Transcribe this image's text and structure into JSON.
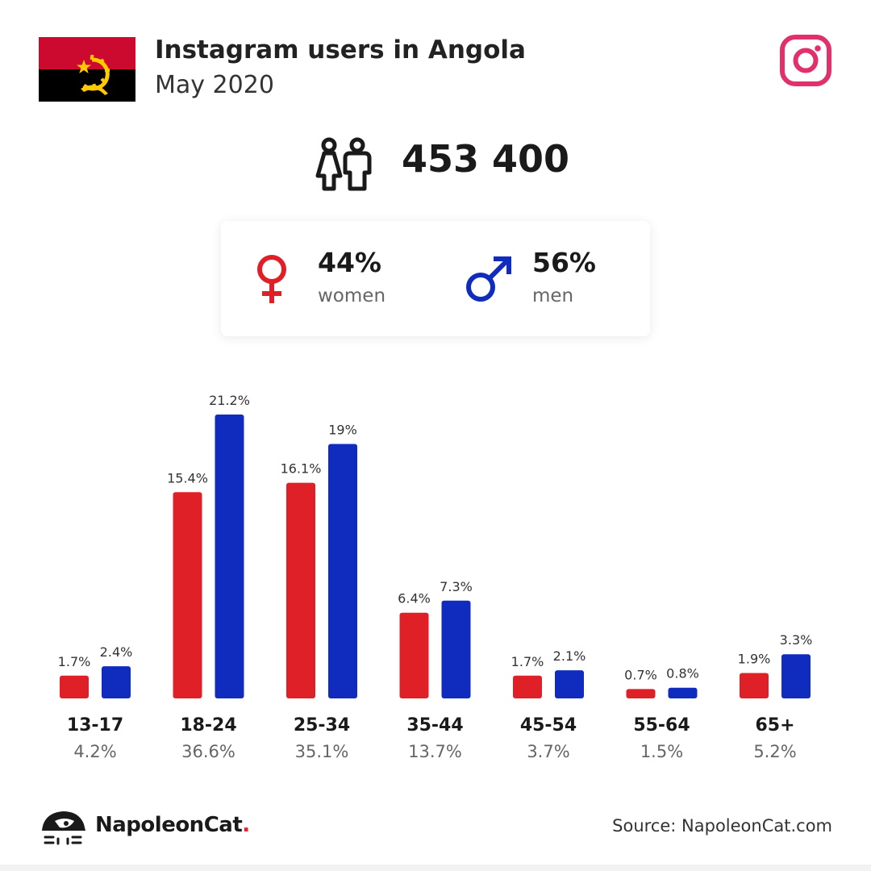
{
  "header": {
    "title": "Instagram users in Angola",
    "subtitle": "May 2020"
  },
  "summary": {
    "total_users": "453 400"
  },
  "gender": {
    "women_pct": "44%",
    "women_label": "women",
    "men_pct": "56%",
    "men_label": "men"
  },
  "colors": {
    "women": "#e02027",
    "men": "#0f2cbf",
    "instagram": "#e1306c"
  },
  "icons": {
    "flag": "angola-flag-icon",
    "platform": "instagram-icon",
    "users": "people-icon",
    "women": "female-symbol-icon",
    "men": "male-symbol-icon",
    "brand": "napoleoncat-logo-icon"
  },
  "chart_data": {
    "type": "bar",
    "categories": [
      "13-17",
      "18-24",
      "25-34",
      "35-44",
      "45-54",
      "55-64",
      "65+"
    ],
    "category_totals": [
      "4.2%",
      "36.6%",
      "35.1%",
      "13.7%",
      "3.7%",
      "1.5%",
      "5.2%"
    ],
    "series": [
      {
        "name": "women",
        "values": [
          1.7,
          15.4,
          16.1,
          6.4,
          1.7,
          0.7,
          1.9
        ],
        "labels": [
          "1.7%",
          "15.4%",
          "16.1%",
          "6.4%",
          "1.7%",
          "0.7%",
          "1.9%"
        ],
        "color": "#e02027"
      },
      {
        "name": "men",
        "values": [
          2.4,
          21.2,
          19,
          7.3,
          2.1,
          0.8,
          3.3
        ],
        "labels": [
          "2.4%",
          "21.2%",
          "19%",
          "7.3%",
          "2.1%",
          "0.8%",
          "3.3%"
        ],
        "color": "#0f2cbf"
      }
    ],
    "ylim": [
      0,
      21.2
    ],
    "grid": false,
    "legend": "none"
  },
  "footer": {
    "brand_name": "NapoleonCat",
    "brand_dot": ".",
    "source": "Source: NapoleonCat.com"
  }
}
